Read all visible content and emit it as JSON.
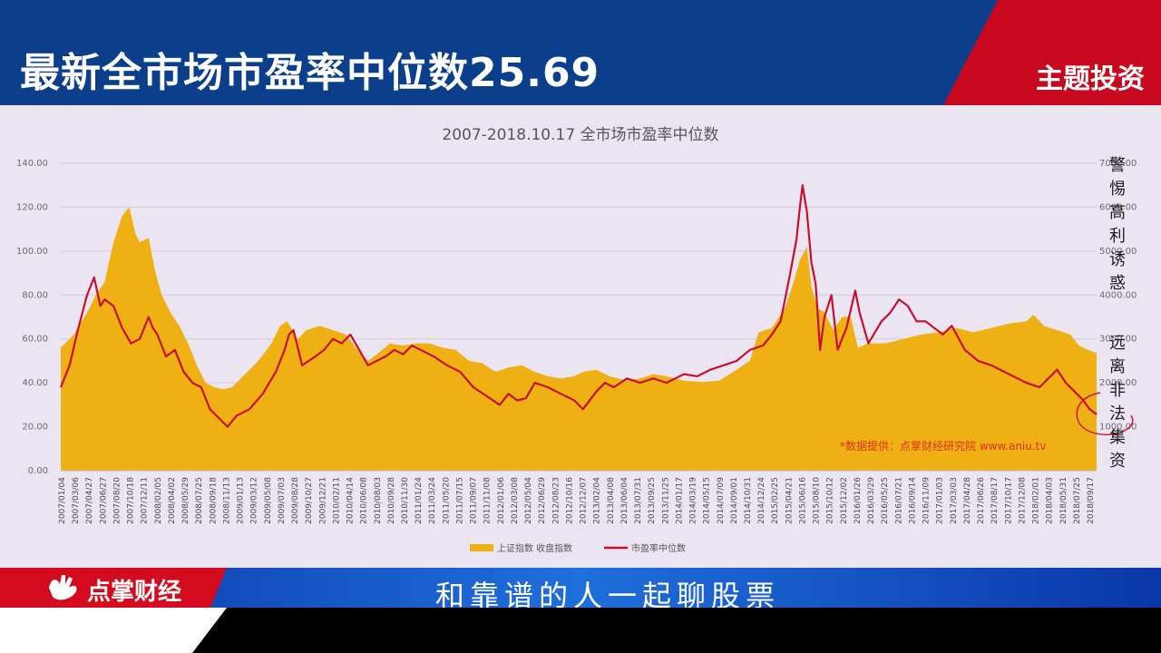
{
  "header": {
    "title": "最新全市场市盈率中位数25.69",
    "tag": "主题投资"
  },
  "chart_data": {
    "type": "area",
    "title": "2007-2018.10.17 全市场市盈率中位数",
    "y_left": {
      "ticks": [
        "0.00",
        "20.00",
        "40.00",
        "60.00",
        "80.00",
        "100.00",
        "120.00",
        "140.00"
      ],
      "range": [
        0,
        140
      ]
    },
    "y_right": {
      "ticks": [
        "1000.00",
        "2000.00",
        "3000.00",
        "4000.00",
        "5000.00",
        "6000.00",
        "7000.00"
      ],
      "range": [
        0,
        7000
      ]
    },
    "x_labels": [
      "2007/01/04",
      "2007/03/06",
      "2007/04/27",
      "2007/06/27",
      "2007/08/20",
      "2007/10/18",
      "2007/12/11",
      "2008/02/05",
      "2008/04/02",
      "2008/05/29",
      "2008/07/25",
      "2008/09/18",
      "2008/11/13",
      "2009/01/13",
      "2009/03/12",
      "2009/05/08",
      "2009/07/03",
      "2009/08/28",
      "2009/10/27",
      "2009/12/21",
      "2010/02/11",
      "2010/04/14",
      "2010/06/08",
      "2010/08/03",
      "2010/09/28",
      "2010/11/30",
      "2011/01/24",
      "2011/03/24",
      "2011/05/20",
      "2011/07/15",
      "2011/09/07",
      "2011/11/08",
      "2012/01/06",
      "2012/03/08",
      "2012/05/04",
      "2012/06/29",
      "2012/08/23",
      "2012/10/16",
      "2012/12/07",
      "2013/02/04",
      "2013/04/08",
      "2013/06/04",
      "2013/07/31",
      "2013/09/25",
      "2013/11/25",
      "2014/01/17",
      "2014/03/19",
      "2014/05/15",
      "2014/07/09",
      "2014/09/01",
      "2014/10/31",
      "2014/12/24",
      "2015/02/25",
      "2015/04/21",
      "2015/06/16",
      "2015/08/10",
      "2015/10/12",
      "2015/12/02",
      "2016/01/26",
      "2016/03/29",
      "2016/05/25",
      "2016/07/21",
      "2016/09/14",
      "2016/11/09",
      "2017/01/03",
      "2017/03/03",
      "2017/04/28",
      "2017/06/26",
      "2017/08/17",
      "2017/10/17",
      "2017/12/08",
      "2018/02/01",
      "2018/04/03",
      "2018/05/31",
      "2018/07/25",
      "2018/09/17"
    ],
    "series": [
      {
        "name": "上证指数 收盘指数",
        "axis": "right",
        "color": "#eeb013",
        "x": [
          2007.0,
          2007.15,
          2007.3,
          2007.4,
          2007.5,
          2007.6,
          2007.7,
          2007.78,
          2007.85,
          2007.9,
          2008.0,
          2008.08,
          2008.15,
          2008.25,
          2008.35,
          2008.45,
          2008.55,
          2008.65,
          2008.75,
          2008.85,
          2008.95,
          2009.1,
          2009.25,
          2009.4,
          2009.5,
          2009.58,
          2009.7,
          2009.8,
          2009.95,
          2010.1,
          2010.25,
          2010.4,
          2010.5,
          2010.6,
          2010.75,
          2010.9,
          2011.05,
          2011.2,
          2011.35,
          2011.5,
          2011.65,
          2011.8,
          2011.95,
          2012.1,
          2012.25,
          2012.4,
          2012.55,
          2012.7,
          2012.85,
          2012.95,
          2013.1,
          2013.25,
          2013.45,
          2013.6,
          2013.75,
          2013.9,
          2014.1,
          2014.3,
          2014.5,
          2014.7,
          2014.85,
          2014.95,
          2015.1,
          2015.25,
          2015.35,
          2015.42,
          2015.5,
          2015.55,
          2015.62,
          2015.7,
          2015.8,
          2015.9,
          2016.0,
          2016.08,
          2016.2,
          2016.4,
          2016.6,
          2016.8,
          2017.0,
          2017.2,
          2017.4,
          2017.6,
          2017.8,
          2018.0,
          2018.08,
          2018.2,
          2018.35,
          2018.5,
          2018.6,
          2018.7,
          2018.8
        ],
        "values": [
          2800,
          3100,
          3600,
          4000,
          4300,
          5200,
          5800,
          6000,
          5400,
          5200,
          5300,
          4500,
          4000,
          3600,
          3300,
          2900,
          2400,
          2000,
          1900,
          1850,
          1900,
          2200,
          2500,
          2900,
          3300,
          3400,
          3000,
          3200,
          3300,
          3200,
          3100,
          2700,
          2500,
          2650,
          2900,
          2850,
          2900,
          2900,
          2800,
          2750,
          2500,
          2450,
          2250,
          2350,
          2400,
          2250,
          2150,
          2100,
          2150,
          2250,
          2300,
          2150,
          2050,
          2100,
          2200,
          2150,
          2050,
          2020,
          2050,
          2300,
          2500,
          3150,
          3250,
          3700,
          4300,
          4800,
          5100,
          4200,
          3700,
          3600,
          3200,
          3500,
          3500,
          2800,
          2900,
          2900,
          3000,
          3100,
          3150,
          3250,
          3150,
          3250,
          3350,
          3400,
          3550,
          3300,
          3200,
          3100,
          2850,
          2750,
          2680
        ]
      },
      {
        "name": "市盈率中位数",
        "axis": "left",
        "color": "#c8102e",
        "x": [
          2007.0,
          2007.1,
          2007.2,
          2007.3,
          2007.38,
          2007.45,
          2007.5,
          2007.6,
          2007.7,
          2007.8,
          2007.9,
          2008.0,
          2008.05,
          2008.1,
          2008.2,
          2008.3,
          2008.4,
          2008.5,
          2008.6,
          2008.7,
          2008.8,
          2008.9,
          2009.0,
          2009.15,
          2009.3,
          2009.45,
          2009.55,
          2009.6,
          2009.65,
          2009.75,
          2009.9,
          2010.0,
          2010.1,
          2010.2,
          2010.3,
          2010.4,
          2010.5,
          2010.6,
          2010.7,
          2010.8,
          2010.9,
          2011.0,
          2011.1,
          2011.25,
          2011.4,
          2011.55,
          2011.7,
          2011.85,
          2012.0,
          2012.1,
          2012.2,
          2012.3,
          2012.4,
          2012.55,
          2012.7,
          2012.85,
          2012.95,
          2013.1,
          2013.2,
          2013.3,
          2013.45,
          2013.6,
          2013.75,
          2013.9,
          2014.0,
          2014.1,
          2014.25,
          2014.4,
          2014.55,
          2014.7,
          2014.85,
          2015.0,
          2015.1,
          2015.2,
          2015.3,
          2015.38,
          2015.42,
          2015.45,
          2015.5,
          2015.55,
          2015.6,
          2015.65,
          2015.7,
          2015.78,
          2015.85,
          2015.95,
          2016.05,
          2016.1,
          2016.2,
          2016.35,
          2016.45,
          2016.55,
          2016.65,
          2016.75,
          2016.85,
          2016.95,
          2017.05,
          2017.15,
          2017.3,
          2017.45,
          2017.6,
          2017.75,
          2017.9,
          2018.0,
          2018.15,
          2018.25,
          2018.35,
          2018.45,
          2018.55,
          2018.65,
          2018.72,
          2018.8
        ],
        "values": [
          38,
          48,
          65,
          80,
          88,
          75,
          78,
          75,
          65,
          58,
          60,
          70,
          65,
          62,
          52,
          55,
          45,
          40,
          38,
          28,
          24,
          20,
          25,
          28,
          35,
          45,
          55,
          62,
          64,
          48,
          52,
          55,
          60,
          58,
          62,
          55,
          48,
          50,
          52,
          55,
          53,
          57,
          55,
          52,
          48,
          45,
          38,
          34,
          30,
          35,
          32,
          33,
          40,
          38,
          35,
          32,
          28,
          36,
          40,
          38,
          42,
          40,
          42,
          40,
          42,
          44,
          43,
          46,
          48,
          50,
          55,
          57,
          62,
          68,
          88,
          105,
          120,
          130,
          118,
          95,
          85,
          55,
          70,
          80,
          55,
          65,
          82,
          72,
          58,
          68,
          72,
          78,
          75,
          68,
          68,
          65,
          62,
          66,
          55,
          50,
          48,
          45,
          42,
          40,
          38,
          42,
          46,
          40,
          36,
          32,
          28,
          25.69
        ]
      }
    ],
    "legend": [
      "上证指数 收盘指数",
      "市盈率中位数"
    ],
    "legend_position": "bottom",
    "source_note": "*数据提供：点掌财经研究院  www.aniu.tv",
    "annotations_right": [
      {
        "chars": [
          "警",
          "惕",
          "高",
          "利",
          "诱",
          "惑"
        ]
      },
      {
        "chars": [
          "远",
          "离",
          "非",
          "法",
          "集",
          "资"
        ]
      }
    ]
  },
  "ticker": {
    "slogan": "和靠谱的人一起聊股票"
  },
  "brand": {
    "name": "点掌财经",
    "icon": "brand-hand-icon"
  }
}
